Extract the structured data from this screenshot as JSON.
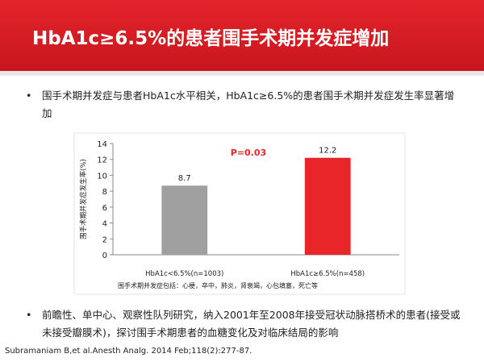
{
  "title": "HbA1c≥6.5%的患者围手术期并发症增加",
  "bullets": [
    "围手术期并发症与患者HbA1c水平相关，HbA1c≥6.5%的患者围手术期并发症发生率显著增加",
    "前瞻性、单中心、观察性队列研究，纳入2001年至2008年接受冠状动脉搭桥术的患者(接受或未接受瓣膜术)，探讨围手术期患者的血糖变化及对临床结局的影响"
  ],
  "citation": "Subramaniam B,et al.Anesth Analg. 2014 Feb;118(2):277-87.",
  "chart_data": {
    "type": "bar",
    "categories": [
      "HbA1c<6.5%(n=1003)",
      "HbA1c≥6.5%(n=458)"
    ],
    "values": [
      8.7,
      12.2
    ],
    "colors": [
      "#a0a0a0",
      "#e8262a"
    ],
    "y_label": "围手术期并发症发生率(%)",
    "annotation": "P=0.03",
    "note": "围手术期并发症包括：心梗，卒中，肺炎，肾衰竭，心包填塞，死亡等",
    "ylim": [
      0,
      14
    ],
    "yticks": [
      0,
      2,
      4,
      6,
      8,
      10,
      12,
      14
    ]
  }
}
